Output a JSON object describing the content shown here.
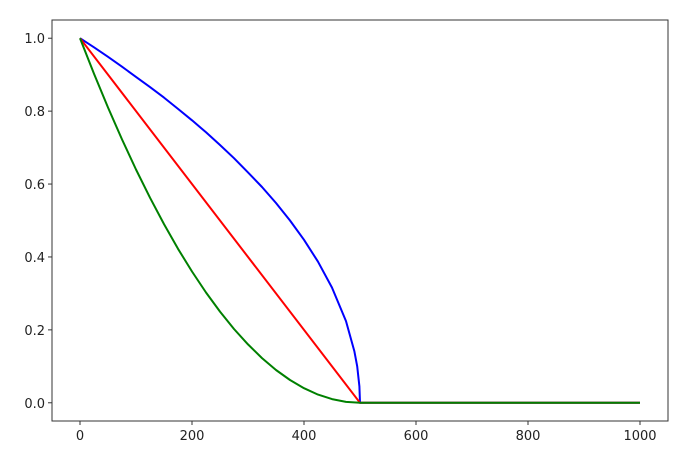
{
  "chart_data": {
    "type": "line",
    "title": "",
    "xlabel": "",
    "ylabel": "",
    "xlim": [
      -50,
      1050
    ],
    "ylim": [
      -0.05,
      1.05
    ],
    "grid": false,
    "x_ticks": [
      "0",
      "200",
      "400",
      "600",
      "800",
      "1000"
    ],
    "y_ticks": [
      "0.0",
      "0.2",
      "0.4",
      "0.6",
      "0.8",
      "1.0"
    ],
    "series": [
      {
        "color": "#0000ff",
        "x": [
          0,
          25,
          50,
          75,
          100,
          125,
          150,
          175,
          200,
          225,
          250,
          275,
          300,
          325,
          350,
          375,
          400,
          425,
          450,
          475,
          490,
          495,
          499,
          500,
          1000
        ],
        "y": [
          1,
          0.975,
          0.949,
          0.922,
          0.894,
          0.866,
          0.837,
          0.806,
          0.775,
          0.742,
          0.707,
          0.671,
          0.632,
          0.592,
          0.548,
          0.5,
          0.447,
          0.387,
          0.316,
          0.224,
          0.141,
          0.1,
          0.045,
          0,
          0
        ]
      },
      {
        "color": "#ff0000",
        "x": [
          0,
          500,
          1000
        ],
        "y": [
          1,
          0,
          0
        ]
      },
      {
        "color": "#008000",
        "x": [
          0,
          25,
          50,
          75,
          100,
          125,
          150,
          175,
          200,
          225,
          250,
          275,
          300,
          325,
          350,
          375,
          400,
          425,
          450,
          475,
          500,
          1000
        ],
        "y": [
          1,
          0.9025,
          0.81,
          0.7225,
          0.64,
          0.5625,
          0.49,
          0.4225,
          0.36,
          0.3025,
          0.25,
          0.2025,
          0.16,
          0.1225,
          0.09,
          0.0625,
          0.04,
          0.0225,
          0.01,
          0.0025,
          0,
          0
        ]
      }
    ]
  }
}
